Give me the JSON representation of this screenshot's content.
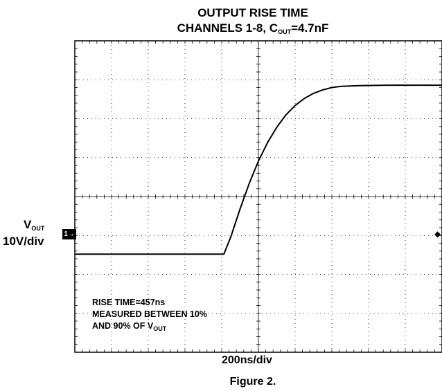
{
  "title": {
    "line1": "OUTPUT RISE TIME",
    "line2_prefix": "CHANNELS 1-8, C",
    "line2_sub": "OUT",
    "line2_suffix": "=4.7nF"
  },
  "channel": {
    "label_main": "V",
    "label_sub": "OUT",
    "scale": "10V/div",
    "marker": "1→",
    "trigger_marker": "◆"
  },
  "timebase": "200ns/div",
  "annotation": {
    "line1": "RISE TIME=457ns",
    "line2": "MEASURED BETWEEN 10%",
    "line3_prefix": "AND 90% OF V",
    "line3_sub": "OUT"
  },
  "caption": "Figure 2.",
  "chart_data": {
    "type": "line",
    "grid": true,
    "xlim": [
      0,
      10
    ],
    "ylim": [
      0,
      8
    ],
    "series": [
      {
        "color": "#000000",
        "points": [
          [
            0,
            2.52
          ],
          [
            4.06,
            2.52
          ],
          [
            4.25,
            2.97
          ],
          [
            4.5,
            3.68
          ],
          [
            4.75,
            4.34
          ],
          [
            5.0,
            4.91
          ],
          [
            5.25,
            5.39
          ],
          [
            5.5,
            5.78
          ],
          [
            5.75,
            6.1
          ],
          [
            6.0,
            6.34
          ],
          [
            6.25,
            6.52
          ],
          [
            6.5,
            6.65
          ],
          [
            6.75,
            6.74
          ],
          [
            7.0,
            6.8
          ],
          [
            7.25,
            6.83
          ],
          [
            7.75,
            6.85
          ],
          [
            8.5,
            6.86
          ],
          [
            10,
            6.86
          ]
        ]
      }
    ]
  }
}
